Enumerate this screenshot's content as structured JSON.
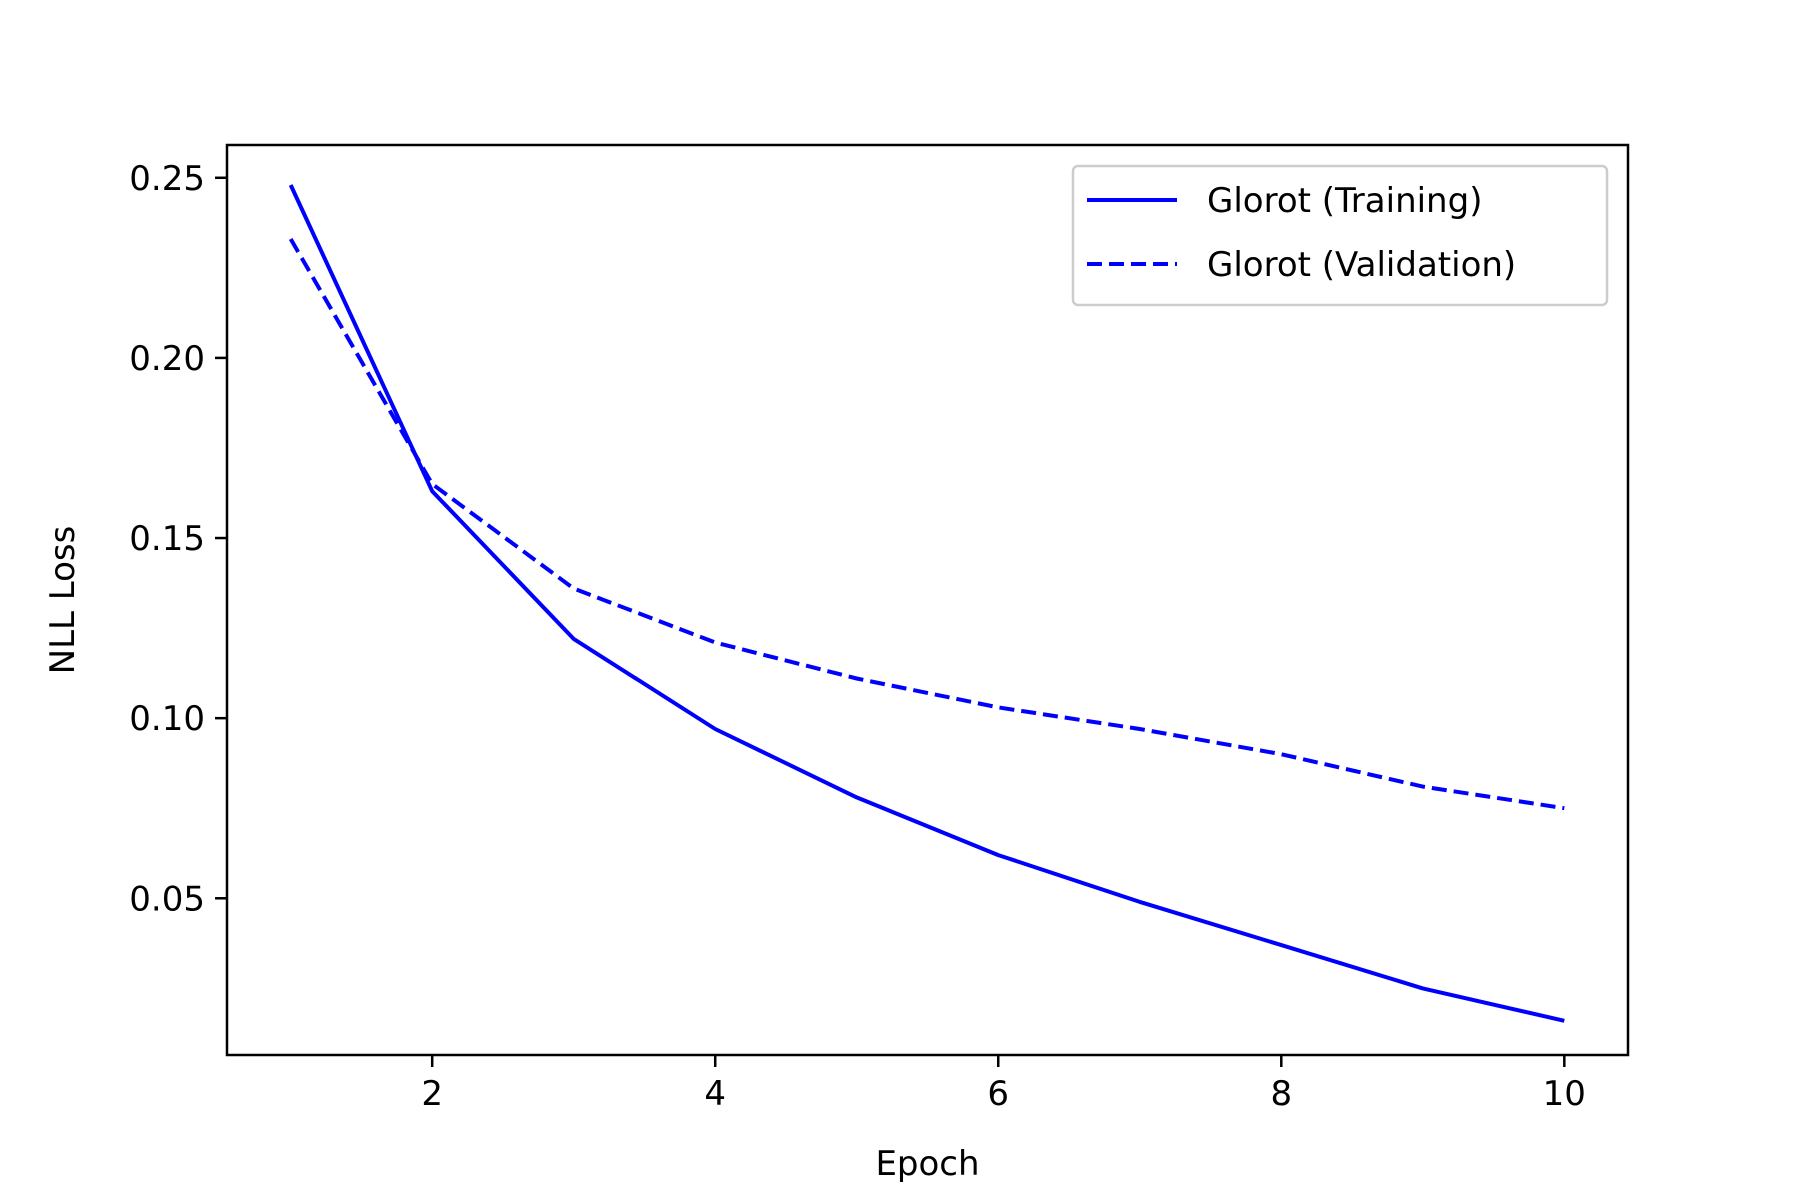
{
  "chart_data": {
    "type": "line",
    "xlabel": "Epoch",
    "ylabel": "NLL Loss",
    "xlim": [
      0.55,
      10.45
    ],
    "ylim": [
      0.0065,
      0.2591
    ],
    "xticks": [
      2,
      4,
      6,
      8,
      10
    ],
    "yticks": [
      0.05,
      0.1,
      0.15,
      0.2,
      0.25
    ],
    "xtick_labels": [
      "2",
      "4",
      "6",
      "8",
      "10"
    ],
    "ytick_labels": [
      "0.05",
      "0.10",
      "0.15",
      "0.20",
      "0.25"
    ],
    "grid": false,
    "legend_position": "top-right",
    "x": [
      1,
      2,
      3,
      4,
      5,
      6,
      7,
      8,
      9,
      10
    ],
    "series": [
      {
        "name": "Glorot (Training)",
        "style": "solid",
        "color": "#0000ff",
        "values": [
          0.248,
          0.163,
          0.122,
          0.097,
          0.078,
          0.062,
          0.049,
          0.037,
          0.025,
          0.016
        ]
      },
      {
        "name": "Glorot (Validation)",
        "style": "dashed",
        "color": "#0000ff",
        "values": [
          0.233,
          0.165,
          0.136,
          0.121,
          0.111,
          0.103,
          0.097,
          0.09,
          0.081,
          0.075
        ]
      }
    ]
  }
}
